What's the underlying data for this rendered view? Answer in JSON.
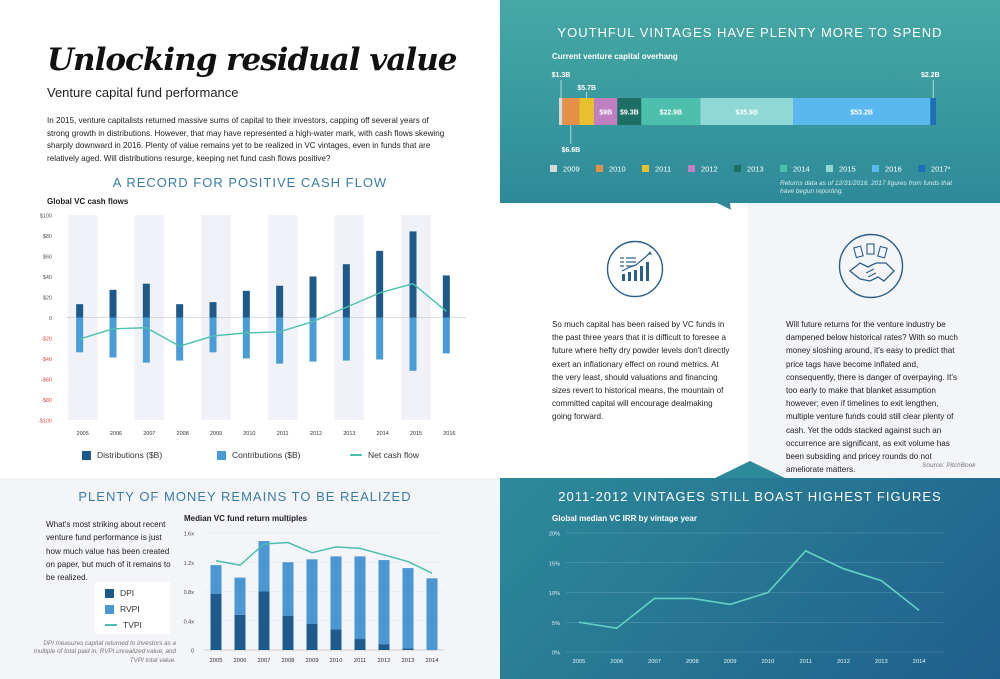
{
  "header": {
    "title": "Unlocking residual value",
    "subtitle": "Venture capital fund performance",
    "intro": "In 2015, venture capitalists returned massive sums of capital to their investors, capping off several years of strong growth in distributions. However, that may have represented a high-water mark, with cash flows skewing sharply downward in 2016. Plenty of value remains yet to be realized in VC vintages, even in funds that are relatively aged. Will distributions resurge, keeping net fund cash flows positive?"
  },
  "cashflow": {
    "heading": "A RECORD FOR POSITIVE CASH FLOW",
    "label": "Global VC cash flows",
    "legend": [
      "Distributions ($B)",
      "Contributions ($B)",
      "Net cash flow"
    ]
  },
  "overhang": {
    "heading": "YOUTHFUL VINTAGES HAVE PLENTY MORE TO SPEND",
    "label": "Current venture capital overhang",
    "note": "Returns data as of 12/31/2016. 2017 figures from funds that have begun reporting."
  },
  "middle": {
    "left_text": "So much capital has been raised by VC funds in the past three years that it is difficult to foresee a future where hefty dry powder levels don't directly exert an inflationary effect on round metrics. At the very least, should valuations and financing sizes revert to historical means, the mountain of committed capital will encourage dealmaking going forward.",
    "right_text": "Will future returns for the venture industry be dampened below historical rates? With so much money sloshing around, it's easy to predict that price tags have become inflated and, consequently, there is danger of overpaying. It's too early to make that blanket assumption however; even if timelines to exit lengthen, multiple venture funds could still clear plenty of cash. Yet the odds stacked against such an occurrence are significant, as exit volume has been subsiding and pricey rounds do not ameliorate matters.",
    "source": "Source: PitchBook"
  },
  "multiples": {
    "heading": "PLENTY OF MONEY REMAINS TO BE REALIZED",
    "text": "What's most striking about recent venture fund performance is just how much value has been created on paper, but much of it remains to be realized.",
    "label": "Median VC fund return multiples",
    "legend": [
      "DPI",
      "RVPI",
      "TVPI"
    ],
    "note": "DPI measures capital returned to investors as a multiple of total paid in, RVPI unrealized value, and TVPI total value."
  },
  "irr": {
    "heading": "2011-2012 VINTAGES STILL BOAST HIGHEST FIGURES",
    "label": "Global median VC IRR by vintage year"
  },
  "colors": {
    "distributions": "#1d5a8a",
    "contributions": "#4a9cd6",
    "net": "#4cc0b0",
    "dpi": "#1e5b8c",
    "rvpi": "#4a97d4",
    "tvpi": "#4cbfae"
  },
  "chart_data": [
    {
      "id": "cashflow",
      "type": "bar",
      "title": "Global VC cash flows",
      "categories": [
        "2005",
        "2006",
        "2007",
        "2008",
        "2009",
        "2010",
        "2011",
        "2012",
        "2013",
        "2014",
        "2015",
        "2016"
      ],
      "series": [
        {
          "name": "Distributions ($B)",
          "values": [
            13,
            27,
            33,
            13,
            15,
            26,
            31,
            40,
            52,
            65,
            84,
            41
          ]
        },
        {
          "name": "Contributions ($B)",
          "values": [
            -34,
            -39,
            -44,
            -42,
            -34,
            -40,
            -45,
            -43,
            -42,
            -41,
            -52,
            -35
          ]
        },
        {
          "name": "Net cash flow",
          "type": "line",
          "values": [
            -21,
            -11,
            -10,
            -28,
            -18,
            -15,
            -14,
            -4,
            10,
            24,
            33,
            6
          ]
        }
      ],
      "ylim": [
        -100,
        100
      ],
      "yticks": [
        "$100",
        "$80",
        "$60",
        "$40",
        "$20",
        "0",
        "-$20",
        "-$40",
        "-$60",
        "-$80",
        "-$100"
      ]
    },
    {
      "id": "overhang",
      "type": "bar",
      "title": "Current venture capital overhang",
      "categories": [
        "2009",
        "2010",
        "2011",
        "2012",
        "2013",
        "2014",
        "2015",
        "2016",
        "2017*"
      ],
      "values": [
        1.3,
        6.6,
        5.7,
        9,
        9.3,
        22.9,
        35.9,
        53.2,
        2.2
      ],
      "labels": [
        "$1.3B",
        "$6.6B",
        "$5.7B",
        "$9B",
        "$9.3B",
        "$22.9B",
        "$35.9B",
        "$53.2B",
        "$2.2B"
      ],
      "colors": [
        "#d9d9d9",
        "#e6914a",
        "#e8bf2c",
        "#c07fc0",
        "#1e6f63",
        "#4cc0ac",
        "#8fd8d6",
        "#5ab8ee",
        "#1f6fb5"
      ]
    },
    {
      "id": "multiples",
      "type": "bar",
      "title": "Median VC fund return multiples",
      "categories": [
        "2005",
        "2006",
        "2007",
        "2008",
        "2009",
        "2010",
        "2011",
        "2012",
        "2013",
        "2014"
      ],
      "series": [
        {
          "name": "DPI",
          "values": [
            0.77,
            0.48,
            0.8,
            0.47,
            0.36,
            0.28,
            0.15,
            0.08,
            0.02,
            0.0
          ]
        },
        {
          "name": "RVPI",
          "values": [
            0.39,
            0.51,
            0.69,
            0.73,
            0.88,
            1.0,
            1.13,
            1.15,
            1.1,
            0.98
          ]
        },
        {
          "name": "TVPI",
          "type": "line",
          "values": [
            1.22,
            1.16,
            1.45,
            1.47,
            1.33,
            1.41,
            1.39,
            1.3,
            1.21,
            1.05
          ]
        }
      ],
      "ylim": [
        0,
        1.6
      ],
      "yticks": [
        "1.6x",
        "1.2x",
        "0.8x",
        "0.4x",
        "0"
      ]
    },
    {
      "id": "irr",
      "type": "line",
      "title": "Global median VC IRR by vintage year",
      "x": [
        "2005",
        "2006",
        "2007",
        "2008",
        "2009",
        "2010",
        "2011",
        "2012",
        "2013",
        "2014"
      ],
      "values": [
        5,
        4,
        9,
        9,
        8,
        10,
        17,
        14,
        12,
        7
      ],
      "ylim": [
        0,
        20
      ],
      "yticks": [
        "20%",
        "15%",
        "10%",
        "5%",
        "0%"
      ]
    }
  ]
}
